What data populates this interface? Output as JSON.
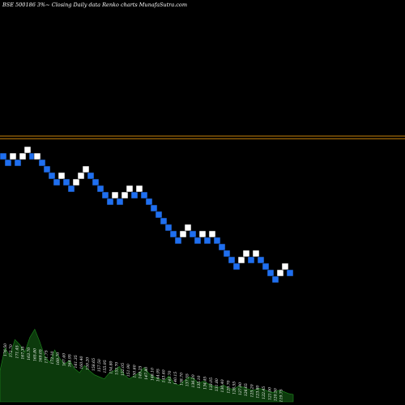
{
  "header": {
    "title": "BSE 500186  3%~  Closing Daily data  Renko  charts MunafaSutra.com"
  },
  "colors": {
    "background": "#000000",
    "up_brick": "#ffffff",
    "down_brick": "#1f6ff0",
    "brick_edge": "#0a0a0a",
    "level_line": "#c8820a",
    "volume_fill": "#0c3a0c",
    "volume_stroke": "#1e8c1e",
    "label_text": "#ffffff"
  },
  "chart_data": {
    "type": "renko",
    "bricks": [
      {
        "y": 148,
        "dir": "down"
      },
      {
        "y": 147,
        "dir": "down"
      },
      {
        "y": 148,
        "dir": "up"
      },
      {
        "y": 147,
        "dir": "down"
      },
      {
        "y": 148,
        "dir": "up"
      },
      {
        "y": 149,
        "dir": "up"
      },
      {
        "y": 148,
        "dir": "down"
      },
      {
        "y": 148,
        "dir": "up"
      },
      {
        "y": 147,
        "dir": "down"
      },
      {
        "y": 146,
        "dir": "down"
      },
      {
        "y": 145,
        "dir": "down"
      },
      {
        "y": 144,
        "dir": "down"
      },
      {
        "y": 145,
        "dir": "up"
      },
      {
        "y": 144,
        "dir": "down"
      },
      {
        "y": 143,
        "dir": "down"
      },
      {
        "y": 144,
        "dir": "up"
      },
      {
        "y": 145,
        "dir": "up"
      },
      {
        "y": 146,
        "dir": "up"
      },
      {
        "y": 145,
        "dir": "down"
      },
      {
        "y": 144,
        "dir": "down"
      },
      {
        "y": 143,
        "dir": "down"
      },
      {
        "y": 142,
        "dir": "down"
      },
      {
        "y": 141,
        "dir": "down"
      },
      {
        "y": 142,
        "dir": "up"
      },
      {
        "y": 141,
        "dir": "down"
      },
      {
        "y": 142,
        "dir": "up"
      },
      {
        "y": 143,
        "dir": "up"
      },
      {
        "y": 142,
        "dir": "down"
      },
      {
        "y": 143,
        "dir": "up"
      },
      {
        "y": 142,
        "dir": "down"
      },
      {
        "y": 141,
        "dir": "down"
      },
      {
        "y": 140,
        "dir": "down"
      },
      {
        "y": 139,
        "dir": "down"
      },
      {
        "y": 138,
        "dir": "down"
      },
      {
        "y": 137,
        "dir": "down"
      },
      {
        "y": 136,
        "dir": "down"
      },
      {
        "y": 135,
        "dir": "down"
      },
      {
        "y": 136,
        "dir": "up"
      },
      {
        "y": 137,
        "dir": "up"
      },
      {
        "y": 136,
        "dir": "down"
      },
      {
        "y": 135,
        "dir": "down"
      },
      {
        "y": 136,
        "dir": "up"
      },
      {
        "y": 135,
        "dir": "down"
      },
      {
        "y": 136,
        "dir": "up"
      },
      {
        "y": 135,
        "dir": "down"
      },
      {
        "y": 134,
        "dir": "down"
      },
      {
        "y": 133,
        "dir": "down"
      },
      {
        "y": 132,
        "dir": "down"
      },
      {
        "y": 131,
        "dir": "down"
      },
      {
        "y": 132,
        "dir": "up"
      },
      {
        "y": 133,
        "dir": "up"
      },
      {
        "y": 132,
        "dir": "down"
      },
      {
        "y": 133,
        "dir": "up"
      },
      {
        "y": 132,
        "dir": "down"
      },
      {
        "y": 131,
        "dir": "down"
      },
      {
        "y": 130,
        "dir": "down"
      },
      {
        "y": 129,
        "dir": "down"
      },
      {
        "y": 130,
        "dir": "up"
      },
      {
        "y": 131,
        "dir": "up"
      },
      {
        "y": 130,
        "dir": "down"
      }
    ],
    "y_range": [
      125,
      170
    ],
    "levels": [
      151.5,
      151.1
    ],
    "volume": [
      30,
      52,
      44,
      60,
      55,
      48,
      62,
      70,
      58,
      44,
      38,
      50,
      42,
      36,
      40,
      32,
      28,
      35,
      30,
      26,
      24,
      22,
      28,
      30,
      34,
      26,
      22,
      25,
      28,
      33,
      27,
      24,
      22,
      20,
      25,
      18,
      16,
      20,
      24,
      22,
      18,
      20,
      17,
      15,
      14,
      16,
      13,
      12,
      15,
      14,
      12,
      11,
      13,
      12,
      10,
      9,
      11,
      10,
      8,
      7
    ],
    "volume_range": [
      0,
      75
    ],
    "volume_labels": [
      "176.50",
      "172.70",
      "171.45",
      "167.35",
      "163.70",
      "165.80",
      "169.05",
      "171.75",
      "172.10",
      "169.70",
      "167.40",
      "164.95",
      "161.35",
      "160.40",
      "159.20",
      "158.65",
      "157.50",
      "155.95",
      "154.80",
      "153.70",
      "152.05",
      "151.90",
      "150.60",
      "149.25",
      "147.80",
      "146.10",
      "144.95",
      "143.40",
      "141.70",
      "140.15",
      "138.70",
      "137.55",
      "136.20",
      "135.10",
      "134.45",
      "133.05",
      "131.80",
      "130.40",
      "129.70",
      "128.55",
      "127.90",
      "126.65",
      "125.20",
      "123.80",
      "122.45",
      "121.90",
      "120.50",
      "119.75"
    ]
  }
}
